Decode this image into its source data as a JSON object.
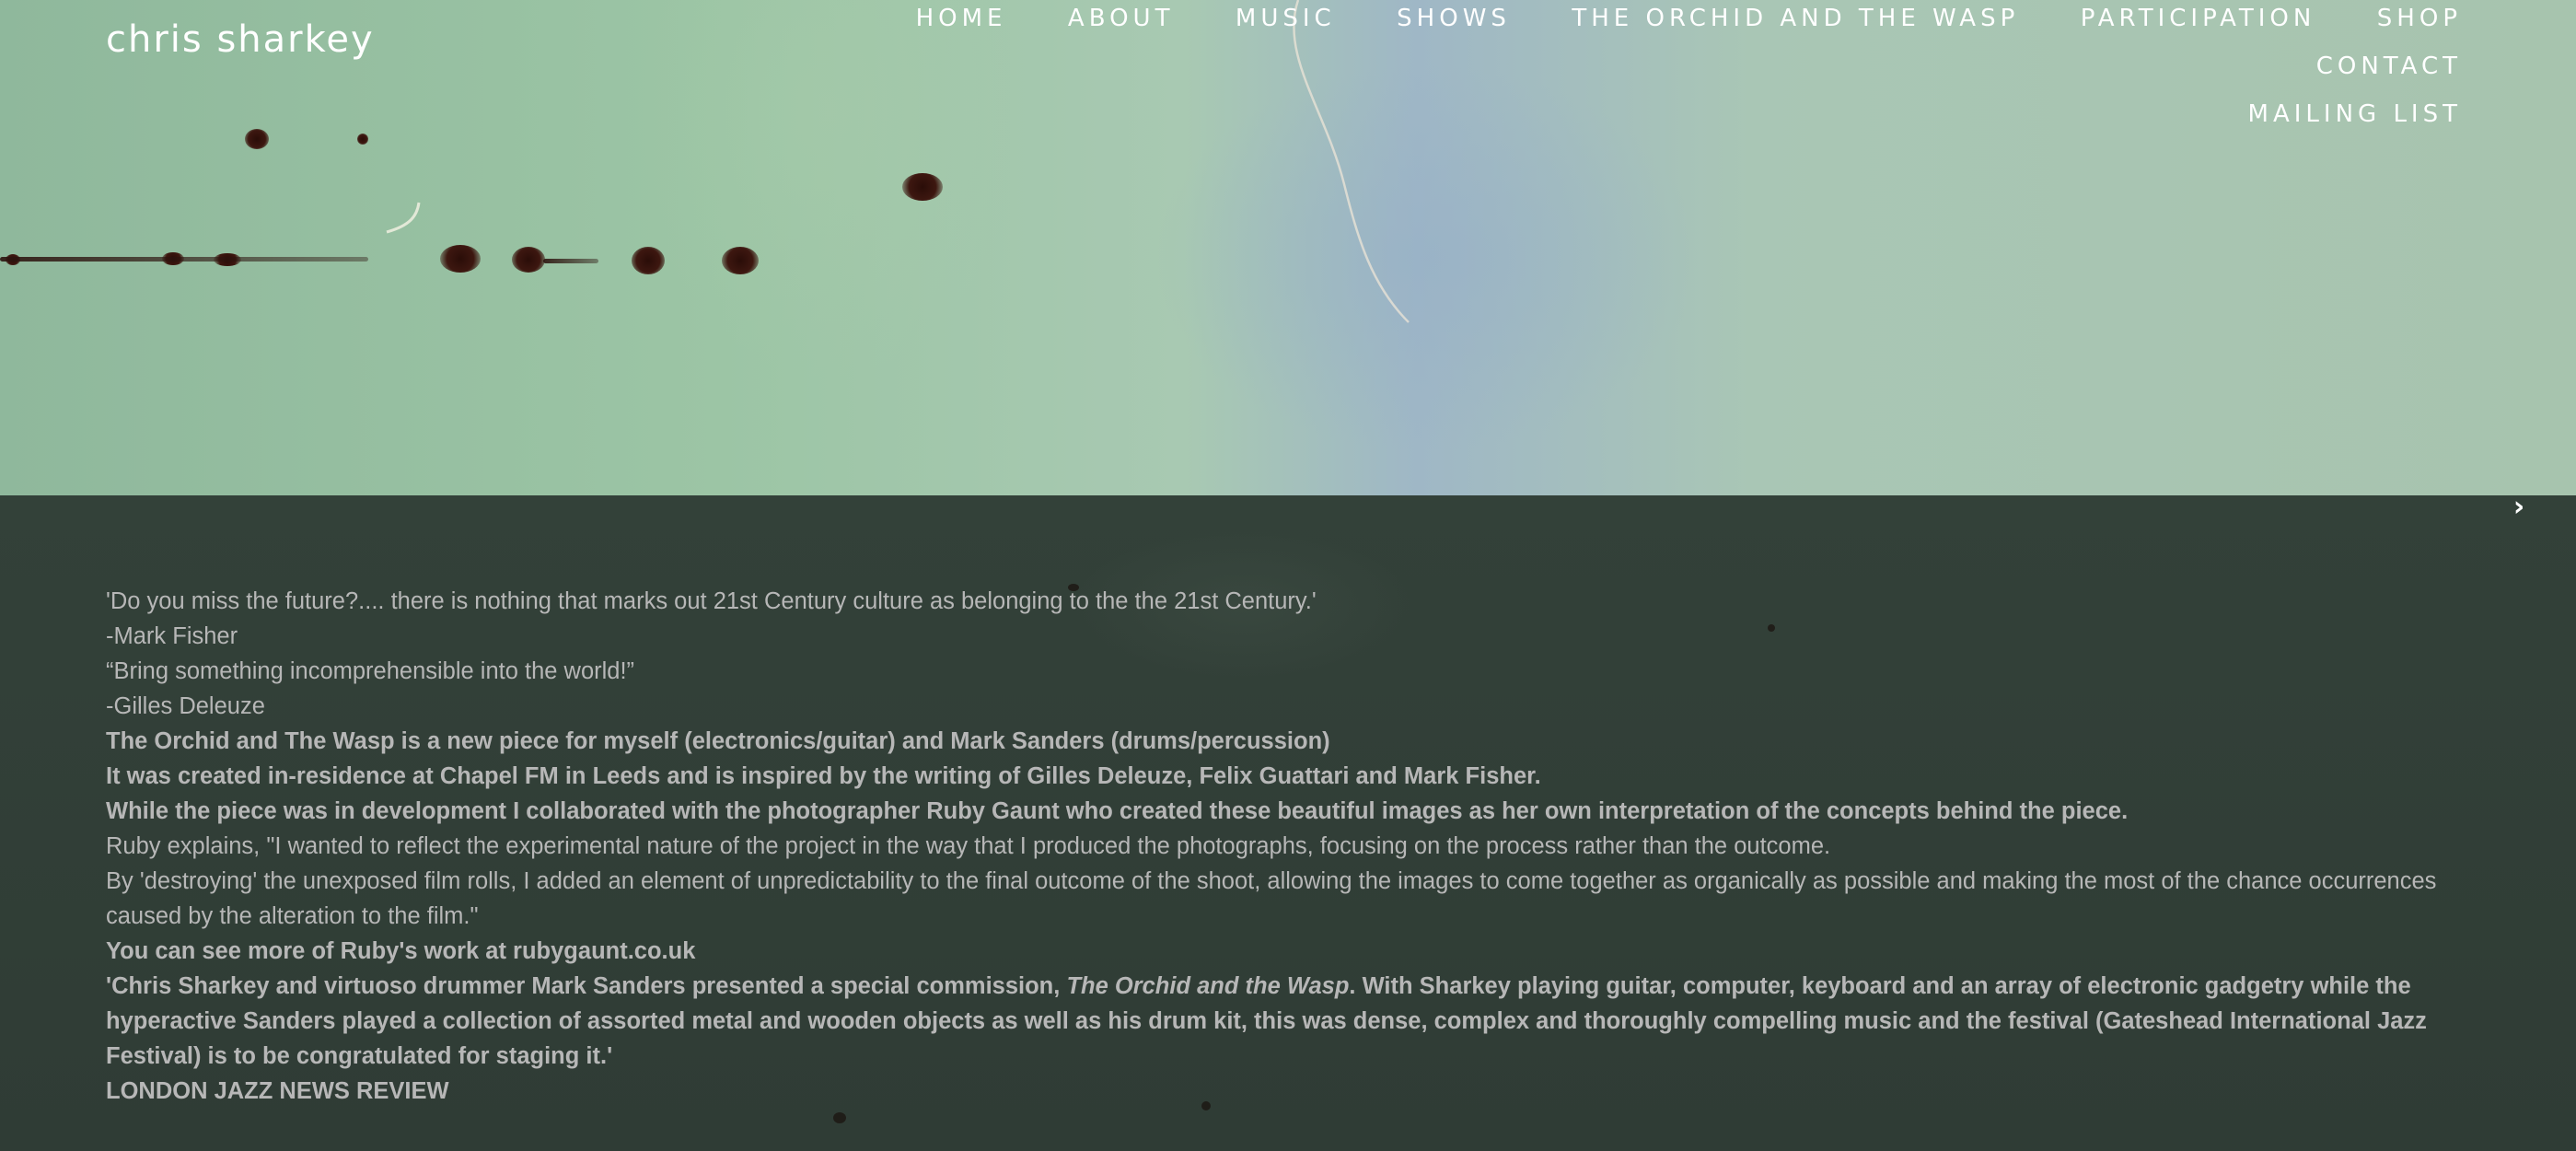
{
  "site": {
    "title": "chris sharkey"
  },
  "nav": {
    "items": [
      {
        "label": "HOME"
      },
      {
        "label": "ABOUT"
      },
      {
        "label": "MUSIC"
      },
      {
        "label": "SHOWS"
      },
      {
        "label": "THE ORCHID AND THE WASP"
      },
      {
        "label": "PARTICIPATION"
      },
      {
        "label": "SHOP"
      },
      {
        "label": "CONTACT"
      },
      {
        "label": "MAILING LIST"
      }
    ]
  },
  "slideshow": {
    "next_icon": "chevron-right-icon"
  },
  "content": {
    "quote1": "'Do you miss the future?.... there is nothing that marks out 21st Century culture as belonging to the the 21st Century.'",
    "quote1_author": "-Mark Fisher",
    "quote2": "“Bring something incomprehensible into the world!”",
    "quote2_author": "-Gilles Deleuze",
    "intro1": "The Orchid and The Wasp is a new piece for myself (electronics/guitar) and Mark Sanders (drums/percussion)",
    "intro2": "It was created in-residence at Chapel FM in Leeds and is inspired by the writing of Gilles Deleuze, Felix Guattari and Mark Fisher.",
    "intro3": "While the piece was in development I collaborated with the photographer Ruby Gaunt who created these beautiful images as her own interpretation of the concepts behind the piece.",
    "ruby1": "Ruby explains, \"I wanted to reflect the experimental nature of the project in the way that I produced the photographs, focusing on the process rather than the outcome.",
    "ruby2": "By 'destroying' the unexposed film rolls, I added an element of unpredictability to the final outcome of the shoot, allowing the images to come together as organically as possible and making the most of the chance occurrences caused by the alteration to the film.\"",
    "ruby_more_prefix": "You can see more of Ruby's work at ",
    "ruby_link": "rubygaunt.co.uk",
    "review_part1": "'Chris Sharkey and virtuoso drummer Mark Sanders presented a special commission, ",
    "review_title": "The Orchid and the Wasp",
    "review_part2": ". With Sharkey playing guitar, computer, keyboard and an array of electronic gadgetry while the hyperactive Sanders played a collection of assorted metal and wooden objects as well as his drum kit, this was dense, complex and thoroughly compelling music and the festival (Gateshead International Jazz Festival) is to be congratulated for staging it.'",
    "review_source": "LONDON JAZZ NEWS REVIEW"
  }
}
